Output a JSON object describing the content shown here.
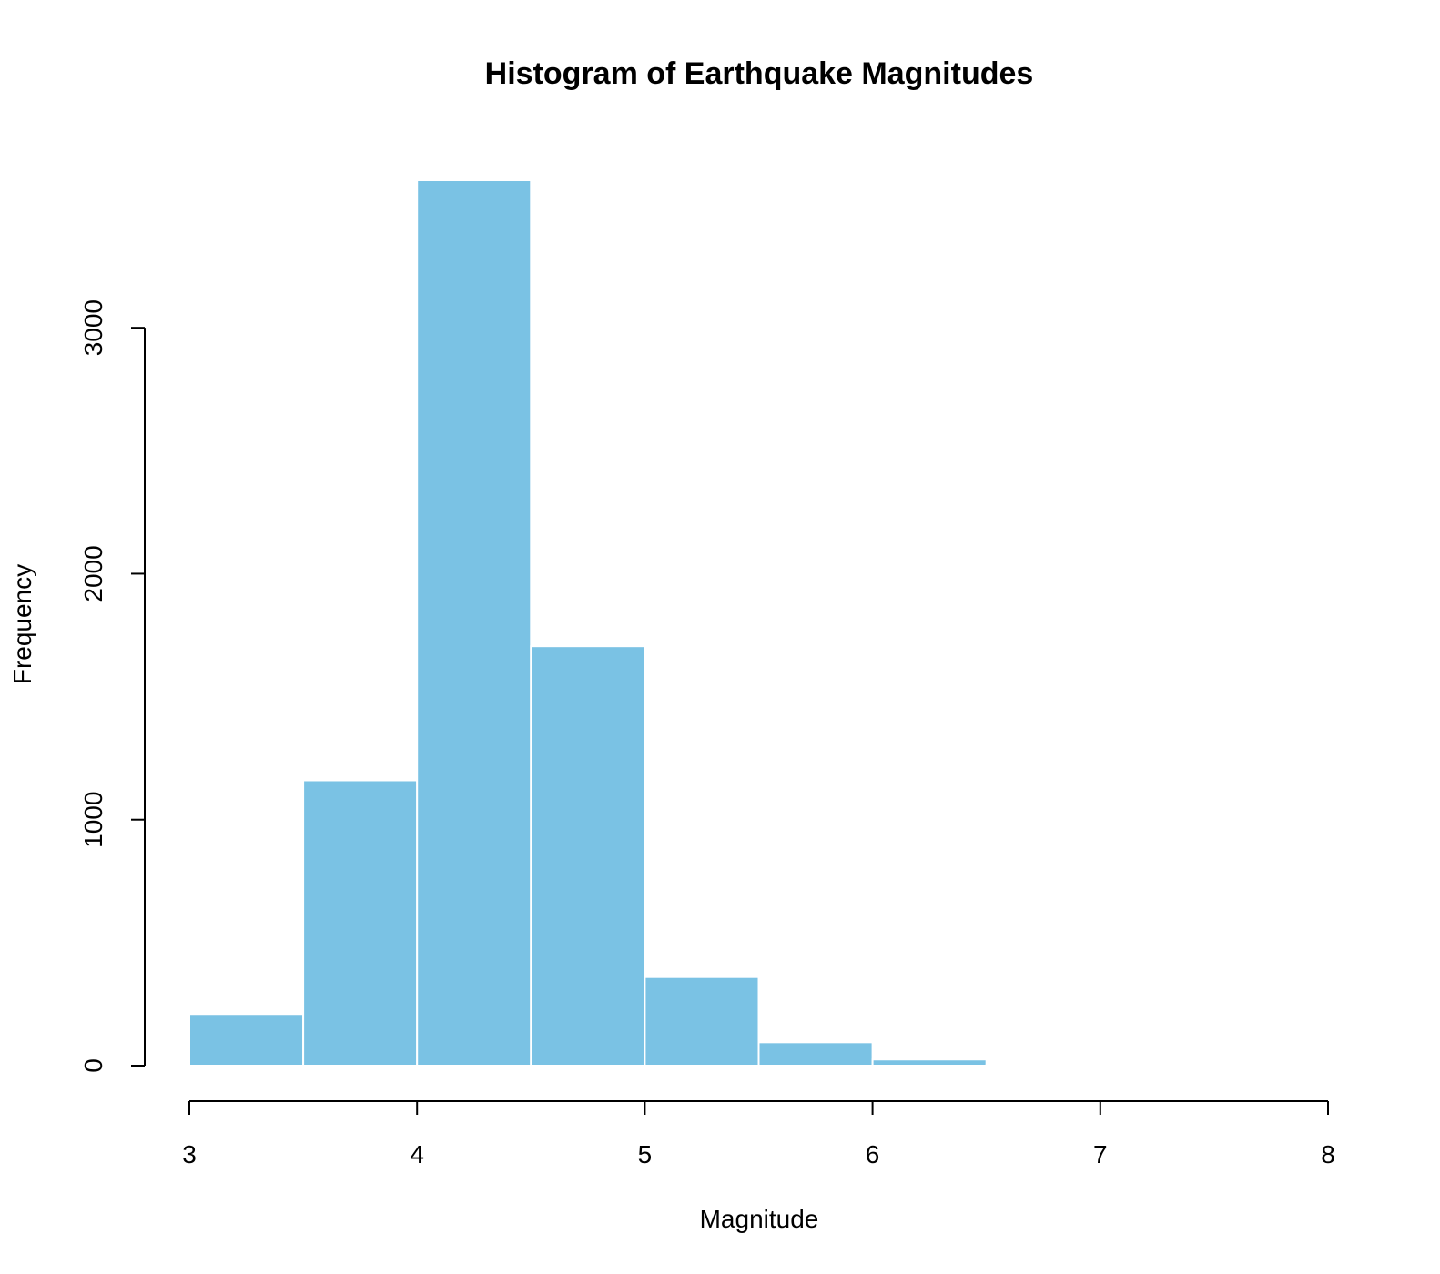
{
  "chart_data": {
    "type": "bar",
    "title": "Histogram of Earthquake Magnitudes",
    "xlabel": "Magnitude",
    "ylabel": "Frequency",
    "bins": [
      {
        "start": 3.0,
        "end": 3.5,
        "value": 210
      },
      {
        "start": 3.5,
        "end": 4.0,
        "value": 1160
      },
      {
        "start": 4.0,
        "end": 4.5,
        "value": 3600
      },
      {
        "start": 4.5,
        "end": 5.0,
        "value": 1705
      },
      {
        "start": 5.0,
        "end": 5.5,
        "value": 360
      },
      {
        "start": 5.5,
        "end": 6.0,
        "value": 95
      },
      {
        "start": 6.0,
        "end": 6.5,
        "value": 25
      },
      {
        "start": 6.5,
        "end": 7.0,
        "value": 2
      }
    ],
    "xlim": [
      3,
      8
    ],
    "xticks": [
      "3",
      "4",
      "5",
      "6",
      "7",
      "8"
    ],
    "ylim": [
      0,
      3600
    ],
    "yticks": [
      "0",
      "1000",
      "2000",
      "3000"
    ],
    "bar_color": "#7AC2E4",
    "bar_border_color": "#ffffff",
    "grid": false,
    "legend": "none"
  }
}
